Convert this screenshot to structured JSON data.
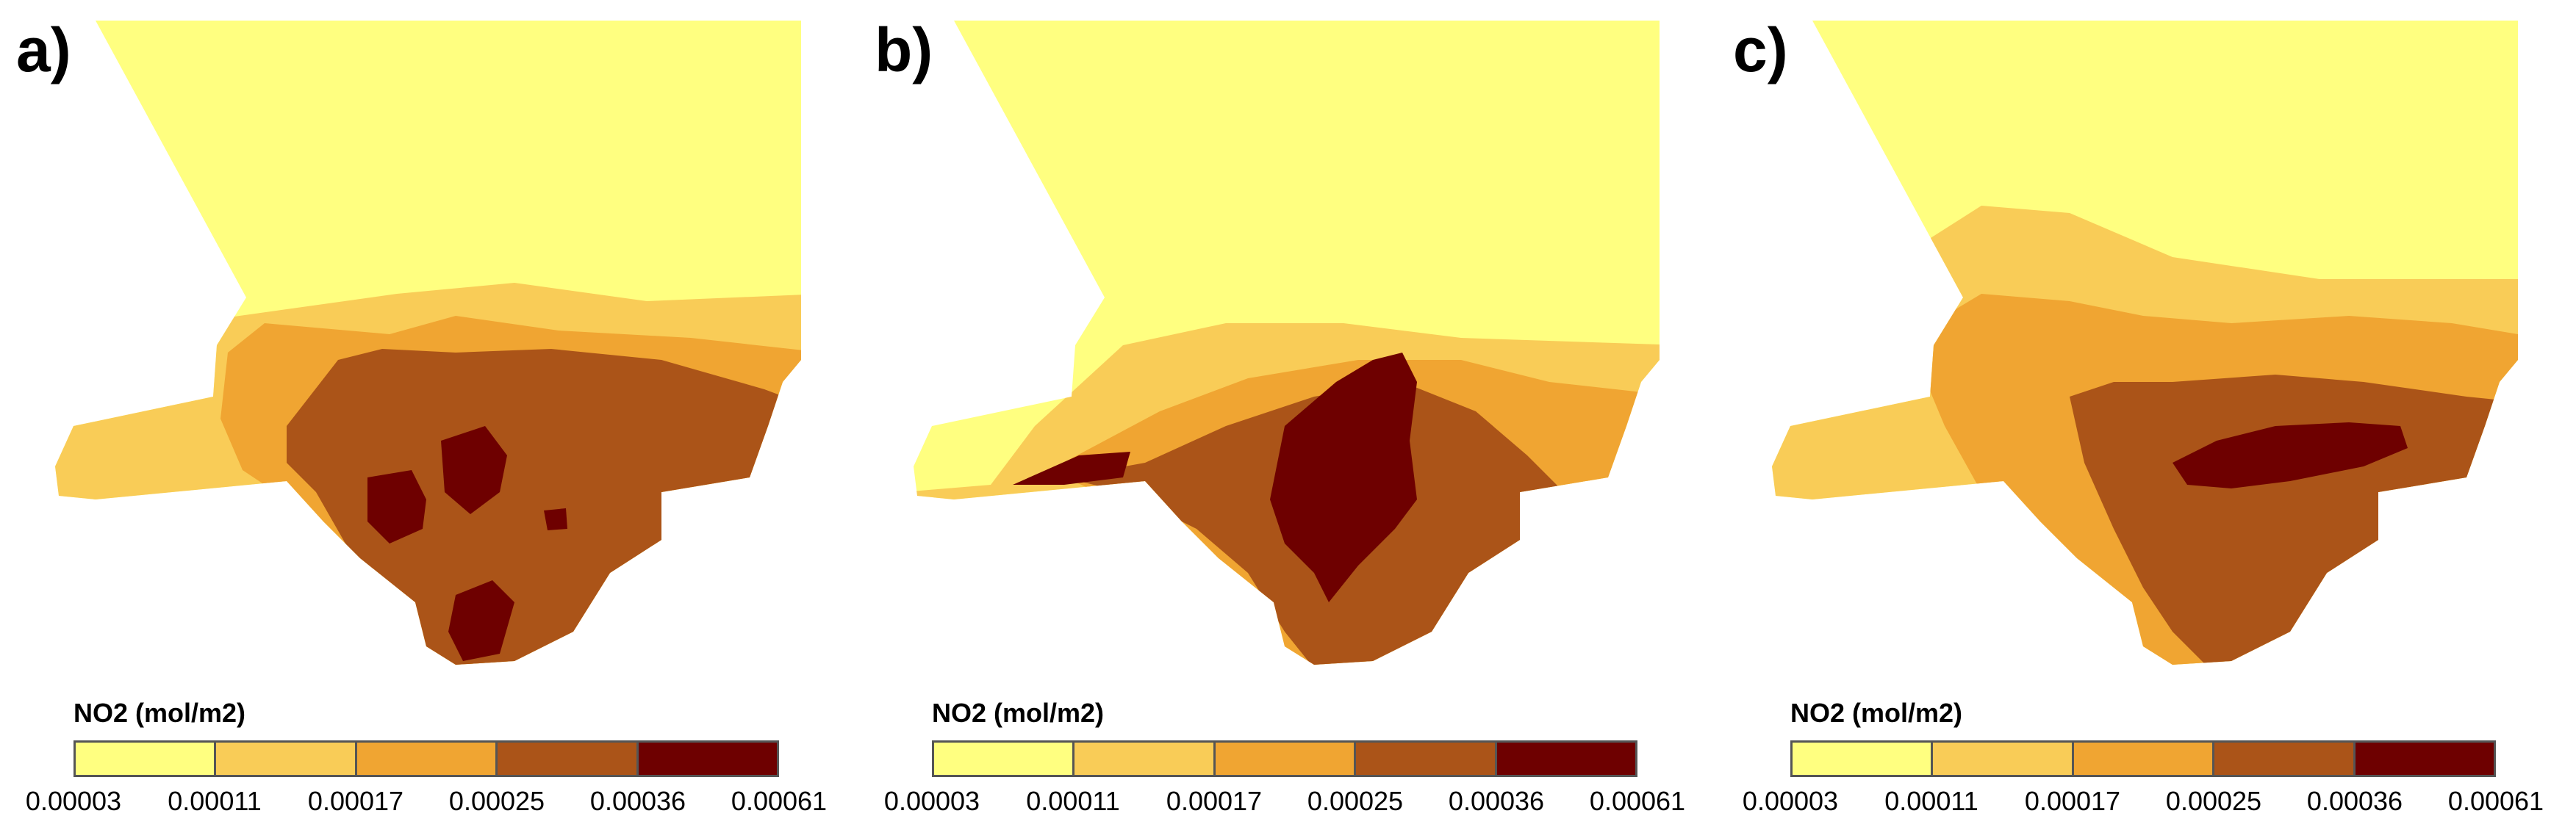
{
  "legend": {
    "title": "NO2 (mol/m2)",
    "colors": [
      "#ffff80",
      "#f9cc57",
      "#f0a532",
      "#ab5418",
      "#6e0000"
    ],
    "ticks": [
      "0.00003",
      "0.00011",
      "0.00017",
      "0.00025",
      "0.00036",
      "0.00061"
    ]
  },
  "panels": [
    {
      "label": "a)",
      "variant": "a"
    },
    {
      "label": "b)",
      "variant": "b"
    },
    {
      "label": "c)",
      "variant": "c"
    }
  ]
}
